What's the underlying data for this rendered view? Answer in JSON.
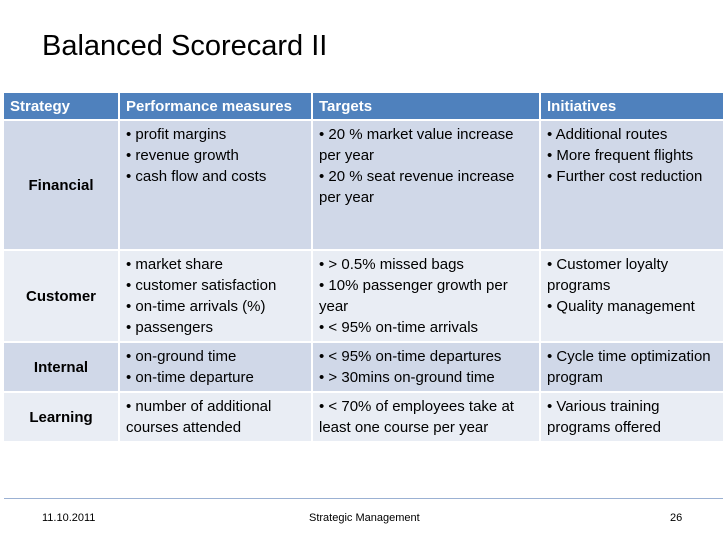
{
  "title": "Balanced Scorecard II",
  "table": {
    "headers": [
      "Strategy",
      "Performance measures",
      "Targets",
      "Initiatives"
    ],
    "rows": [
      {
        "label": "Financial",
        "measures": [
          "• profit margins",
          "• revenue growth",
          "• cash flow and costs"
        ],
        "targets": [
          "• 20 % market value increase per year",
          "• 20 % seat revenue increase per year"
        ],
        "initiatives": [
          "• Additional routes",
          "• More frequent flights",
          "• Further cost reduction"
        ]
      },
      {
        "label": "Customer",
        "measures": [
          "• market share",
          "• customer satisfaction",
          "• on-time arrivals (%)",
          "• passengers"
        ],
        "targets": [
          "• > 0.5% missed bags",
          "• 10% passenger growth per year",
          "• < 95% on-time arrivals"
        ],
        "initiatives": [
          "• Customer loyalty programs",
          "• Quality management"
        ]
      },
      {
        "label": "Internal",
        "measures": [
          "• on-ground time",
          "• on-time departure"
        ],
        "targets": [
          "• < 95% on-time departures",
          "• > 30mins on-ground time"
        ],
        "initiatives": [
          "• Cycle time optimization program"
        ]
      },
      {
        "label": "Learning",
        "measures": [
          "• number of additional courses attended"
        ],
        "targets": [
          "• < 70% of employees take at least one course per year"
        ],
        "initiatives": [
          "• Various training programs offered"
        ]
      }
    ]
  },
  "footer": {
    "date": "11.10.2011",
    "center": "Strategic Management",
    "page": "26"
  },
  "colors": {
    "header_bg": "#4f81bd",
    "row_odd": "#d0d8e8",
    "row_even": "#e9edf4"
  }
}
